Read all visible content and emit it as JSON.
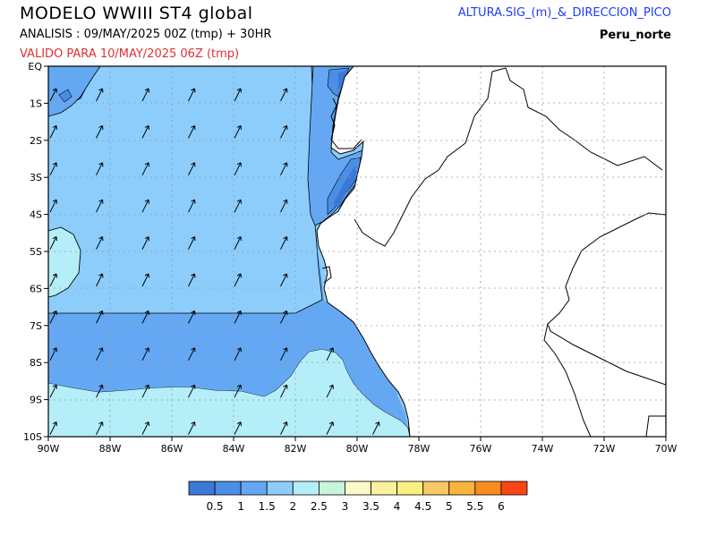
{
  "header": {
    "title": "MODELO WWIII ST4 global",
    "analysis": "ANALISIS : 09/MAY/2025 00Z (tmp) + 30HR",
    "valid": "VALIDO PARA 10/MAY/2025 06Z (tmp)",
    "variable": "ALTURA.SIG_(m)_&_DIRECCION_PICO",
    "region": "Peru_norte"
  },
  "axes": {
    "lon_labels": [
      "90W",
      "88W",
      "86W",
      "84W",
      "82W",
      "80W",
      "78W",
      "76W",
      "74W",
      "72W",
      "70W"
    ],
    "lat_labels": [
      "EQ",
      "1S",
      "2S",
      "3S",
      "4S",
      "5S",
      "6S",
      "7S",
      "8S",
      "9S",
      "10S"
    ],
    "lon_range": [
      -90,
      -70
    ],
    "lat_range": [
      0,
      -10
    ],
    "grid": true
  },
  "colorbar": {
    "labels": [
      "0.5",
      "1",
      "1.5",
      "2",
      "2.5",
      "3",
      "3.5",
      "4",
      "4.5",
      "5",
      "5.5",
      "6"
    ],
    "colors": [
      "#3c78d8",
      "#4a8ee6",
      "#64a8f4",
      "#8ccdfc",
      "#b4eef8",
      "#c8f4dc",
      "#fafac8",
      "#faf0a0",
      "#faf082",
      "#fac864",
      "#fab43c",
      "#fa8c1e",
      "#fa4614"
    ]
  },
  "fields": {
    "wave_height_colors": {
      "band_1_5_2": "#8ccdfc",
      "band_2_2_5": "#b4eef8",
      "band_1_1_5": "#64a8f4",
      "band_0_5_1": "#4a8ee6",
      "band_lt_0_5": "#3c78d8"
    },
    "peak_direction": "northeast",
    "arrow_icon": "direction-arrow-icon"
  }
}
